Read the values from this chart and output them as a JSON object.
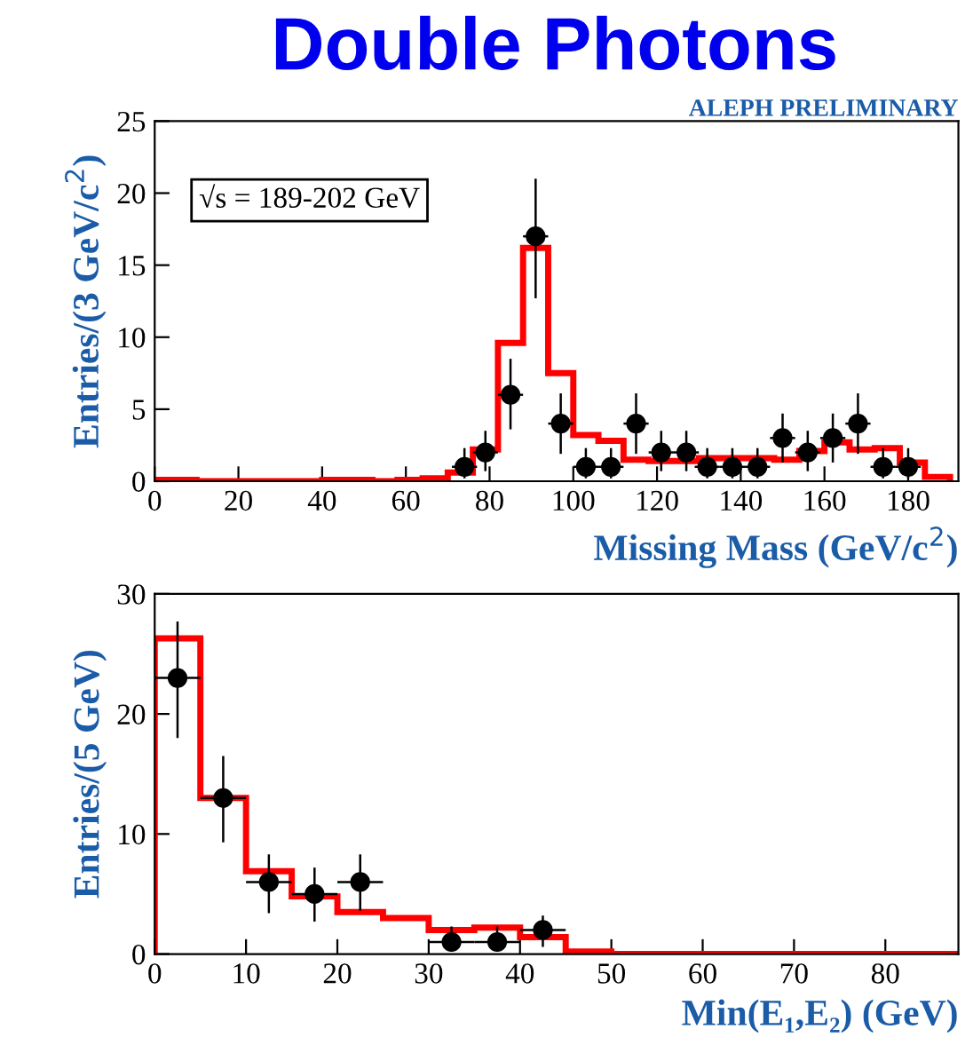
{
  "chart_data": [
    {
      "type": "histogram",
      "title": "Double Photons",
      "ylabel": "Entries/(3 GeV/c$^{2}$)",
      "xlabel": "Missing Mass (GeV/c$^{2}$)",
      "annotations": [
        "ALEPH PRELIMINARY",
        "√s = 189-202 GeV"
      ],
      "bins": [
        0,
        4,
        10,
        16,
        22,
        28,
        34,
        40,
        46,
        52,
        58,
        64,
        70,
        76,
        82,
        88,
        94,
        100,
        106,
        112,
        118,
        124,
        130,
        136,
        142,
        148,
        154,
        160,
        166,
        172,
        178,
        184,
        190
      ],
      "values": [
        0.1,
        0.1,
        0,
        0,
        0,
        0,
        0,
        0.1,
        0.1,
        0,
        0.1,
        0.2,
        0.6,
        2.2,
        9.6,
        16.2,
        7.5,
        3.2,
        2.8,
        1.5,
        1.4,
        1.4,
        1.6,
        1.6,
        1.6,
        1.5,
        2.1,
        2.7,
        2.2,
        2.3,
        1.3,
        0.3
      ],
      "color": "#ff0000",
      "series": [
        {
          "type": "scatter",
          "color": "#000000",
          "x": [
            74,
            79,
            85,
            91,
            97,
            103,
            109,
            115,
            121,
            127,
            132,
            138,
            144,
            150,
            156,
            162,
            168,
            174,
            180
          ],
          "values": [
            1,
            2,
            6,
            17,
            4,
            1,
            1,
            4,
            2,
            2,
            1,
            1,
            1,
            3,
            2,
            3,
            4,
            1,
            1
          ],
          "errors": [
            [
              0.2,
              2.3
            ],
            [
              0.7,
              3.5
            ],
            [
              3.6,
              8.5
            ],
            [
              12.7,
              21
            ],
            [
              1.9,
              6.1
            ],
            [
              0.2,
              2.3
            ],
            [
              0.2,
              2.3
            ],
            [
              1.9,
              6.1
            ],
            [
              0.7,
              3.5
            ],
            [
              0.7,
              3.5
            ],
            [
              0.2,
              2.3
            ],
            [
              0.2,
              2.3
            ],
            [
              0.2,
              2.3
            ],
            [
              1.3,
              4.7
            ],
            [
              0.7,
              3.5
            ],
            [
              1.3,
              4.7
            ],
            [
              1.9,
              6.1
            ],
            [
              0.2,
              2.3
            ],
            [
              0.2,
              2.3
            ]
          ],
          "xerrors": [
            3,
            3,
            3,
            3,
            3,
            3,
            3,
            3,
            3,
            3,
            3,
            3,
            3,
            3,
            3,
            3,
            3,
            3,
            3
          ]
        }
      ],
      "xlim": [
        0,
        192
      ],
      "ylim": [
        0,
        25
      ],
      "xticks": [
        0,
        20,
        40,
        60,
        80,
        100,
        120,
        140,
        160,
        180
      ],
      "yticks": [
        0,
        5,
        10,
        15,
        20,
        25
      ],
      "marker": "circle",
      "grid": false,
      "legend": false
    },
    {
      "type": "histogram",
      "ylabel": "Entries/(5 GeV)",
      "xlabel": "Min(E₁,E₂) (GeV)",
      "bins": [
        0,
        5,
        10,
        15,
        20,
        25,
        30,
        35,
        40,
        45,
        50,
        55,
        60,
        65,
        70,
        75,
        80,
        85,
        90
      ],
      "values": [
        26.3,
        13,
        6.9,
        4.8,
        3.5,
        3.0,
        2.0,
        2.2,
        1.4,
        0.2,
        0,
        0,
        0,
        0,
        0,
        0,
        0,
        0
      ],
      "color": "#ff0000",
      "series": [
        {
          "type": "scatter",
          "color": "#000000",
          "x": [
            2.5,
            7.5,
            12.5,
            17.5,
            22.5,
            32.5,
            37.5,
            42.5
          ],
          "values": [
            23,
            13,
            6,
            5,
            6,
            1,
            1,
            2
          ],
          "errors": [
            [
              18,
              27.7
            ],
            [
              9.3,
              16.5
            ],
            [
              3.4,
              8.3
            ],
            [
              2.7,
              7.2
            ],
            [
              3.6,
              8.3
            ],
            [
              0.2,
              2.3
            ],
            [
              0.2,
              2.3
            ],
            [
              0.6,
              3.2
            ]
          ],
          "xerrors": [
            2.5,
            2.5,
            2.5,
            2.5,
            2.5,
            2.5,
            2.5,
            2.5
          ]
        }
      ],
      "xlim": [
        0,
        88
      ],
      "ylim": [
        0,
        30
      ],
      "xticks": [
        0,
        10,
        20,
        30,
        40,
        50,
        60,
        70,
        80
      ],
      "yticks": [
        0,
        10,
        20,
        30
      ],
      "marker": "circle",
      "grid": false,
      "legend": false
    }
  ]
}
